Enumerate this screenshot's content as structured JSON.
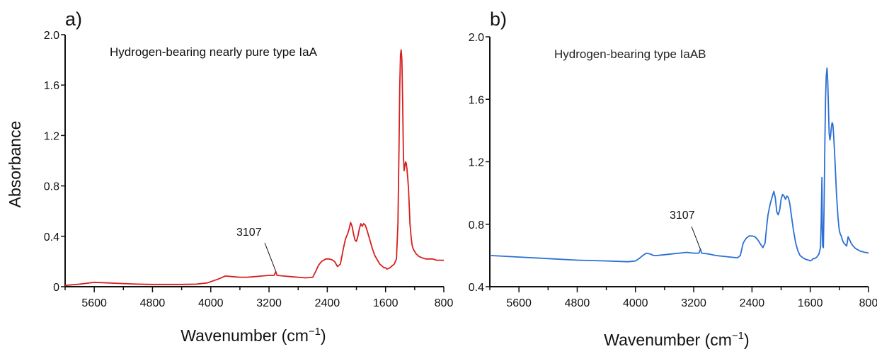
{
  "chart_data": [
    {
      "panel_label": "a)",
      "type": "line",
      "title": "Hydrogen-bearing nearly pure type IaA",
      "xlabel_main": "Wavenumber (cm",
      "xlabel_sup": "−1",
      "xlabel_end": ")",
      "ylabel": "Absorbance",
      "xlim": [
        6000,
        800
      ],
      "x_reversed": true,
      "ylim": [
        0,
        2.0
      ],
      "xticks": [
        5600,
        4800,
        4000,
        3200,
        2400,
        1600,
        800
      ],
      "yticks": [
        0,
        0.4,
        0.8,
        1.2,
        1.6,
        2.0
      ],
      "ytick_labels": [
        "0",
        "0.4",
        "0.8",
        "1.2",
        "1.6",
        "2.0"
      ],
      "color": "#d81e1e",
      "annotation": {
        "text": "3107",
        "x": 3107,
        "y": 0.1
      },
      "series": [
        {
          "x": [
            6000,
            5800,
            5600,
            5400,
            5200,
            5000,
            4800,
            4600,
            4400,
            4200,
            4050,
            3900,
            3800,
            3700,
            3600,
            3500,
            3400,
            3300,
            3200,
            3130,
            3107,
            3090,
            3000,
            2900,
            2800,
            2700,
            2600,
            2560,
            2520,
            2480,
            2420,
            2380,
            2340,
            2300,
            2260,
            2220,
            2180,
            2150,
            2120,
            2100,
            2080,
            2060,
            2040,
            2020,
            2000,
            1980,
            1960,
            1940,
            1920,
            1900,
            1880,
            1860,
            1840,
            1810,
            1780,
            1750,
            1720,
            1700,
            1680,
            1660,
            1640,
            1620,
            1600,
            1580,
            1560,
            1540,
            1520,
            1500,
            1480,
            1450,
            1430,
            1415,
            1405,
            1395,
            1385,
            1375,
            1365,
            1355,
            1345,
            1335,
            1325,
            1315,
            1305,
            1295,
            1285,
            1275,
            1265,
            1250,
            1235,
            1220,
            1200,
            1180,
            1160,
            1140,
            1100,
            1050,
            1000,
            950,
            900,
            850,
            800
          ],
          "y": [
            0.01,
            0.02,
            0.035,
            0.03,
            0.025,
            0.02,
            0.018,
            0.018,
            0.018,
            0.02,
            0.03,
            0.06,
            0.085,
            0.08,
            0.075,
            0.075,
            0.08,
            0.085,
            0.09,
            0.09,
            0.12,
            0.09,
            0.085,
            0.08,
            0.075,
            0.07,
            0.075,
            0.12,
            0.17,
            0.2,
            0.22,
            0.22,
            0.215,
            0.2,
            0.16,
            0.18,
            0.3,
            0.38,
            0.42,
            0.46,
            0.51,
            0.48,
            0.42,
            0.37,
            0.36,
            0.4,
            0.46,
            0.5,
            0.48,
            0.5,
            0.49,
            0.46,
            0.42,
            0.36,
            0.3,
            0.25,
            0.22,
            0.2,
            0.18,
            0.17,
            0.16,
            0.15,
            0.15,
            0.14,
            0.145,
            0.15,
            0.16,
            0.17,
            0.18,
            0.22,
            0.5,
            1.1,
            1.6,
            1.84,
            1.88,
            1.8,
            1.45,
            1.05,
            0.92,
            0.96,
            0.99,
            0.98,
            0.93,
            0.86,
            0.78,
            0.65,
            0.5,
            0.4,
            0.33,
            0.3,
            0.28,
            0.26,
            0.25,
            0.24,
            0.23,
            0.22,
            0.22,
            0.22,
            0.21,
            0.21,
            0.21
          ]
        }
      ]
    },
    {
      "panel_label": "b)",
      "type": "line",
      "title": "Hydrogen-bearing type IaAB",
      "xlabel_main": "Wavenumber (cm",
      "xlabel_sup": "−1",
      "xlabel_end": ")",
      "ylabel": "",
      "xlim": [
        6000,
        800
      ],
      "x_reversed": true,
      "ylim": [
        0.4,
        2.0
      ],
      "xticks": [
        5600,
        4800,
        4000,
        3200,
        2400,
        1600,
        800
      ],
      "yticks": [
        0.4,
        0.8,
        1.2,
        1.6,
        2.0
      ],
      "ytick_labels": [
        "0.4",
        "0.8",
        "1.2",
        "1.6",
        "2.0"
      ],
      "color": "#2b6fd6",
      "annotation": {
        "text": "3107",
        "x": 3107,
        "y": 0.62
      },
      "series": [
        {
          "x": [
            6000,
            5600,
            5200,
            4800,
            4400,
            4100,
            4000,
            3950,
            3900,
            3850,
            3800,
            3750,
            3700,
            3600,
            3500,
            3400,
            3300,
            3200,
            3130,
            3107,
            3090,
            3000,
            2950,
            2900,
            2800,
            2700,
            2600,
            2560,
            2520,
            2480,
            2440,
            2400,
            2360,
            2320,
            2280,
            2250,
            2220,
            2200,
            2180,
            2150,
            2120,
            2100,
            2080,
            2060,
            2040,
            2020,
            2000,
            1980,
            1960,
            1940,
            1920,
            1900,
            1880,
            1860,
            1830,
            1800,
            1770,
            1740,
            1700,
            1660,
            1620,
            1600,
            1580,
            1560,
            1540,
            1510,
            1480,
            1460,
            1450,
            1440,
            1435,
            1430,
            1420,
            1410,
            1400,
            1390,
            1380,
            1370,
            1360,
            1350,
            1340,
            1330,
            1320,
            1310,
            1300,
            1290,
            1280,
            1270,
            1260,
            1250,
            1240,
            1230,
            1220,
            1210,
            1200,
            1190,
            1180,
            1170,
            1160,
            1150,
            1140,
            1130,
            1120,
            1110,
            1100,
            1090,
            1080,
            1060,
            1040,
            1020,
            1000,
            980,
            960,
            940,
            920,
            900,
            880,
            860,
            840,
            820,
            800
          ],
          "y": [
            0.6,
            0.59,
            0.58,
            0.57,
            0.565,
            0.56,
            0.565,
            0.58,
            0.6,
            0.615,
            0.61,
            0.6,
            0.6,
            0.605,
            0.61,
            0.615,
            0.62,
            0.615,
            0.615,
            0.64,
            0.615,
            0.61,
            0.605,
            0.6,
            0.595,
            0.59,
            0.585,
            0.6,
            0.68,
            0.71,
            0.725,
            0.725,
            0.72,
            0.7,
            0.67,
            0.65,
            0.68,
            0.78,
            0.86,
            0.93,
            0.98,
            1.01,
            0.97,
            0.88,
            0.86,
            0.89,
            0.96,
            0.99,
            0.98,
            0.96,
            0.98,
            0.97,
            0.93,
            0.86,
            0.76,
            0.68,
            0.63,
            0.6,
            0.585,
            0.575,
            0.57,
            0.565,
            0.57,
            0.58,
            0.58,
            0.59,
            0.61,
            0.65,
            0.8,
            1.1,
            0.8,
            0.66,
            0.65,
            0.9,
            1.3,
            1.6,
            1.75,
            1.8,
            1.72,
            1.55,
            1.38,
            1.34,
            1.37,
            1.42,
            1.45,
            1.44,
            1.38,
            1.3,
            1.2,
            1.1,
            1.0,
            0.92,
            0.85,
            0.8,
            0.76,
            0.74,
            0.73,
            0.72,
            0.7,
            0.69,
            0.68,
            0.675,
            0.67,
            0.665,
            0.66,
            0.69,
            0.72,
            0.7,
            0.68,
            0.665,
            0.655,
            0.645,
            0.64,
            0.635,
            0.63,
            0.625,
            0.625,
            0.62,
            0.62,
            0.618,
            0.615
          ]
        }
      ]
    }
  ]
}
